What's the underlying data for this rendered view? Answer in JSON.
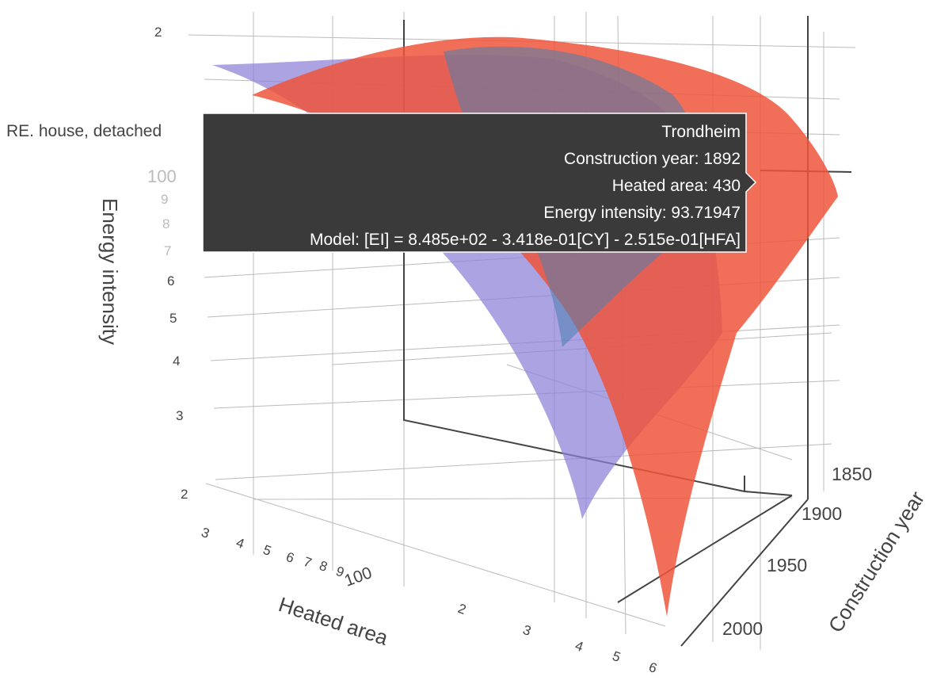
{
  "chart_data": {
    "type": "surface",
    "zaxis": {
      "title": "Energy intensity",
      "log": true,
      "ticks": [
        {
          "value": 200,
          "label": "2"
        },
        100,
        {
          "value": 90,
          "label": "9"
        },
        {
          "value": 80,
          "label": "8"
        },
        {
          "value": 70,
          "label": "7"
        },
        {
          "value": 60,
          "label": "6"
        },
        {
          "value": 50,
          "label": "5"
        },
        {
          "value": 40,
          "label": "4"
        },
        {
          "value": 30,
          "label": "3"
        },
        {
          "value": 20,
          "label": "2"
        }
      ]
    },
    "xaxis": {
      "title": "Heated area",
      "log": true,
      "ticks": [
        {
          "value": 30,
          "label": "3"
        },
        {
          "value": 40,
          "label": "4"
        },
        {
          "value": 50,
          "label": "5"
        },
        {
          "value": 60,
          "label": "6"
        },
        {
          "value": 70,
          "label": "7"
        },
        {
          "value": 80,
          "label": "8"
        },
        {
          "value": 90,
          "label": "9"
        },
        100,
        {
          "value": 200,
          "label": "2"
        },
        {
          "value": 300,
          "label": "3"
        },
        {
          "value": 400,
          "label": "4"
        },
        {
          "value": 500,
          "label": "5"
        },
        {
          "value": 600,
          "label": "6"
        }
      ]
    },
    "yaxis": {
      "title": "Construction year",
      "ticks": [
        1850,
        1900,
        1950,
        2000
      ]
    },
    "hover": {
      "trace": "RE. house, detached",
      "lines": [
        "Trondheim",
        "Construction year: 1892",
        "Heated area: 430",
        "Energy intensity: 93.71947",
        "Model: [EI] = 8.485e+02 - 3.418e-01[CY] - 2.515e-01[HFA]"
      ]
    }
  }
}
